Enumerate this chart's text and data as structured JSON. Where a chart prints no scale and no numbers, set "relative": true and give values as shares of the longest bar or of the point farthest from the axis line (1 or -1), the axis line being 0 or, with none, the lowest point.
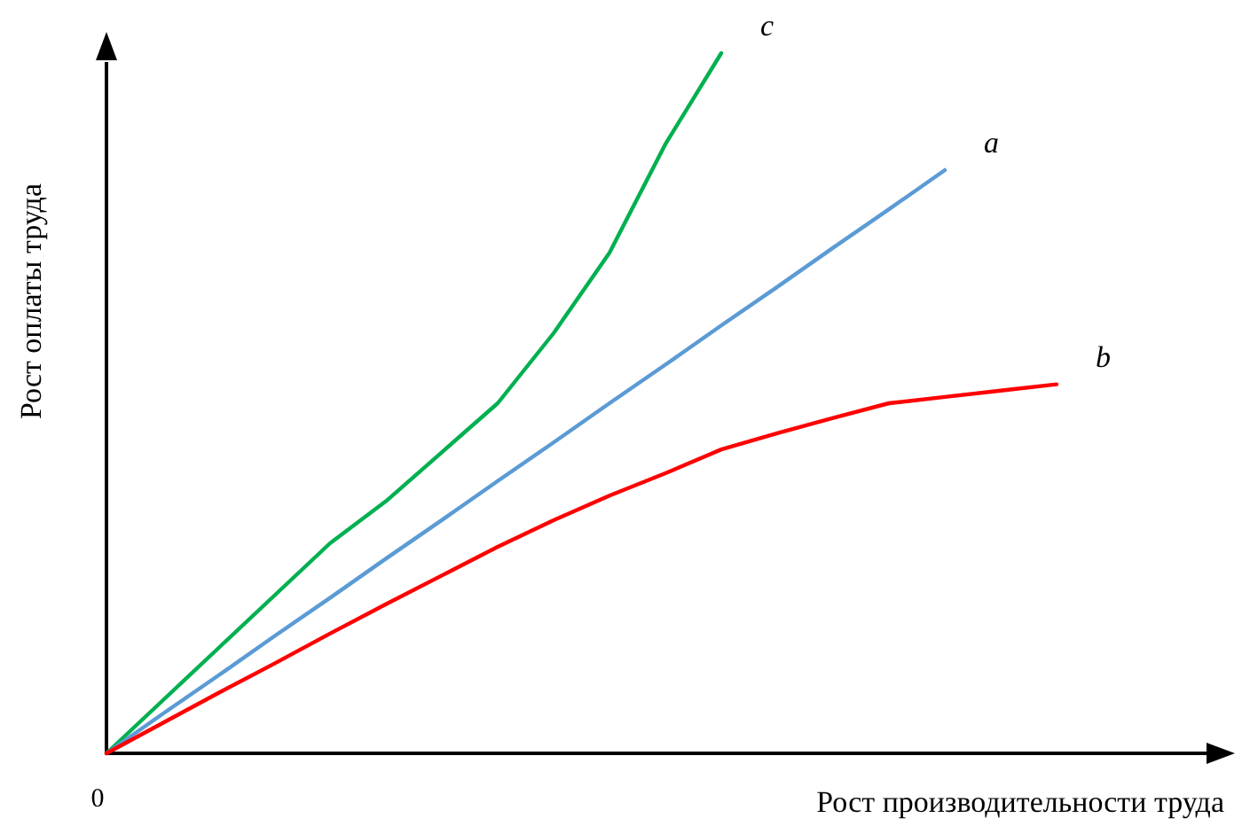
{
  "chart_data": {
    "type": "line",
    "relative": true,
    "xlabel": "Рост производительности труда",
    "ylabel": "Рост оплаты труда",
    "annotations": [
      "0"
    ],
    "marker": "none",
    "line_style": "solid",
    "categories": [
      null,
      null,
      null,
      null,
      null,
      null,
      null,
      null,
      null,
      null,
      null,
      null,
      null,
      null,
      null,
      null,
      null,
      null,
      null,
      null,
      null
    ],
    "series": [
      {
        "name": "c",
        "color": "#00b050",
        "values": [
          0,
          0.075,
          0.15,
          0.225,
          0.3,
          0.36,
          0.43,
          0.5,
          0.6,
          0.715,
          0.87,
          1,
          null,
          null,
          null,
          null,
          null,
          null,
          null,
          null,
          null
        ]
      },
      {
        "name": "a",
        "color": "#5b9bd5",
        "values": [
          0,
          0.056,
          0.111,
          0.167,
          0.222,
          0.278,
          0.333,
          0.389,
          0.444,
          0.5,
          0.555,
          0.611,
          0.666,
          0.722,
          0.777,
          0.833,
          null,
          null,
          null,
          null,
          null
        ]
      },
      {
        "name": "b",
        "color": "#ff0000",
        "values": [
          0,
          0.043,
          0.086,
          0.128,
          0.171,
          0.213,
          0.254,
          0.295,
          0.333,
          0.368,
          0.4,
          0.434,
          0.457,
          0.479,
          0.5,
          0.509,
          0.518,
          0.527,
          null,
          null,
          null
        ]
      }
    ]
  }
}
